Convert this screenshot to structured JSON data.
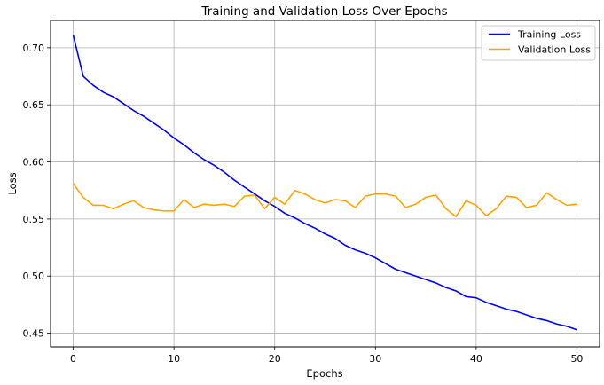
{
  "chart_data": {
    "type": "line",
    "title": "Training and Validation Loss Over Epochs",
    "xlabel": "Epochs",
    "ylabel": "Loss",
    "xlim": [
      -2.25,
      52.25
    ],
    "ylim": [
      0.438,
      0.724
    ],
    "xticks": [
      0,
      10,
      20,
      30,
      40,
      50
    ],
    "yticks": [
      0.45,
      0.5,
      0.55,
      0.6,
      0.65,
      0.7
    ],
    "ytick_labels": [
      "0.45",
      "0.50",
      "0.55",
      "0.60",
      "0.65",
      "0.70"
    ],
    "grid": true,
    "legend_position": "top-right",
    "x": [
      0,
      1,
      2,
      3,
      4,
      5,
      6,
      7,
      8,
      9,
      10,
      11,
      12,
      13,
      14,
      15,
      16,
      17,
      18,
      19,
      20,
      21,
      22,
      23,
      24,
      25,
      26,
      27,
      28,
      29,
      30,
      31,
      32,
      33,
      34,
      35,
      36,
      37,
      38,
      39,
      40,
      41,
      42,
      43,
      44,
      45,
      46,
      47,
      48,
      49,
      50
    ],
    "series": [
      {
        "name": "Training Loss",
        "color": "#0000ff",
        "values": [
          0.711,
          0.675,
          0.667,
          0.661,
          0.657,
          0.651,
          0.645,
          0.64,
          0.634,
          0.628,
          0.621,
          0.615,
          0.608,
          0.602,
          0.597,
          0.591,
          0.584,
          0.578,
          0.572,
          0.566,
          0.561,
          0.555,
          0.551,
          0.546,
          0.542,
          0.537,
          0.533,
          0.527,
          0.523,
          0.52,
          0.516,
          0.511,
          0.506,
          0.503,
          0.5,
          0.497,
          0.494,
          0.49,
          0.487,
          0.482,
          0.481,
          0.477,
          0.474,
          0.471,
          0.469,
          0.466,
          0.463,
          0.461,
          0.458,
          0.456,
          0.453
        ]
      },
      {
        "name": "Validation Loss",
        "color": "#ffa500",
        "values": [
          0.581,
          0.569,
          0.562,
          0.562,
          0.559,
          0.563,
          0.566,
          0.56,
          0.558,
          0.557,
          0.557,
          0.567,
          0.56,
          0.563,
          0.562,
          0.563,
          0.561,
          0.57,
          0.571,
          0.559,
          0.569,
          0.563,
          0.575,
          0.572,
          0.567,
          0.564,
          0.567,
          0.566,
          0.56,
          0.57,
          0.572,
          0.572,
          0.57,
          0.56,
          0.563,
          0.569,
          0.571,
          0.559,
          0.552,
          0.566,
          0.562,
          0.553,
          0.559,
          0.57,
          0.569,
          0.56,
          0.562,
          0.573,
          0.567,
          0.562,
          0.563
        ]
      }
    ]
  }
}
